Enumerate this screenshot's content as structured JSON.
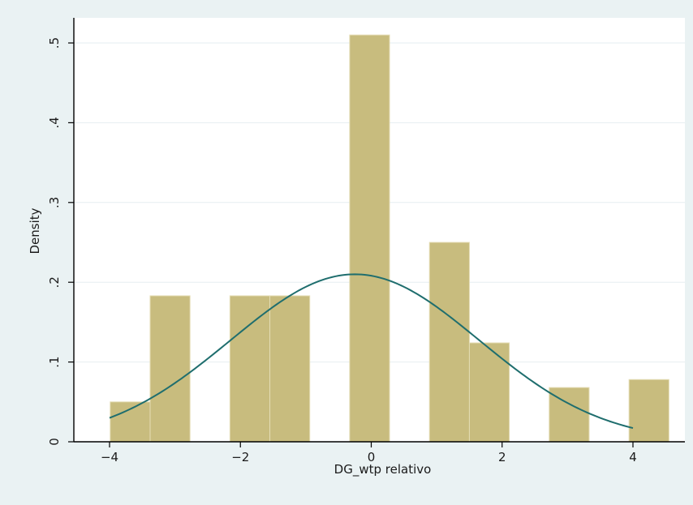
{
  "chart_data": {
    "type": "bar",
    "subtype": "histogram-with-normal-density",
    "title": "",
    "xlabel": "DG_wtp relativo",
    "ylabel": "Density",
    "xlim": [
      -4.0,
      4.6
    ],
    "ylim": [
      0,
      0.52
    ],
    "xticks": [
      -4,
      -2,
      0,
      2,
      4
    ],
    "xtick_labels": [
      "−4",
      "−2",
      "0",
      "2",
      "4"
    ],
    "yticks": [
      0,
      0.1,
      0.2,
      0.3,
      0.4,
      0.5
    ],
    "ytick_labels": [
      "0",
      ".1",
      ".2",
      ".3",
      ".4",
      ".5"
    ],
    "grid": "horizontal",
    "legend": "none",
    "bins": [
      {
        "x0": -3.99,
        "x1": -3.38,
        "value": 0.05
      },
      {
        "x0": -3.38,
        "x1": -2.77,
        "value": 0.183
      },
      {
        "x0": -2.77,
        "x1": -2.16,
        "value": 0
      },
      {
        "x0": -2.16,
        "x1": -1.55,
        "value": 0.183
      },
      {
        "x0": -1.55,
        "x1": -0.94,
        "value": 0.183
      },
      {
        "x0": -0.94,
        "x1": -0.33,
        "value": 0
      },
      {
        "x0": -0.33,
        "x1": 0.28,
        "value": 0.51
      },
      {
        "x0": 0.28,
        "x1": 0.89,
        "value": 0
      },
      {
        "x0": 0.89,
        "x1": 1.5,
        "value": 0.25
      },
      {
        "x0": 1.5,
        "x1": 2.11,
        "value": 0.124
      },
      {
        "x0": 2.11,
        "x1": 2.72,
        "value": 0
      },
      {
        "x0": 2.72,
        "x1": 3.33,
        "value": 0.068
      },
      {
        "x0": 3.33,
        "x1": 3.94,
        "value": 0
      },
      {
        "x0": 3.94,
        "x1": 4.55,
        "value": 0.078
      }
    ],
    "normal_curve": {
      "mean": -0.25,
      "sd": 1.9,
      "x_range": [
        -4.0,
        4.0
      ]
    },
    "colors": {
      "bar_fill": "#c8bc7e",
      "bar_edge": "#e4dcb4",
      "curve": "#1f6e6e",
      "plot_background": "#ffffff",
      "outer_background": "#eaf2f3",
      "grid": "#e6eef0",
      "axis": "#000000"
    }
  }
}
